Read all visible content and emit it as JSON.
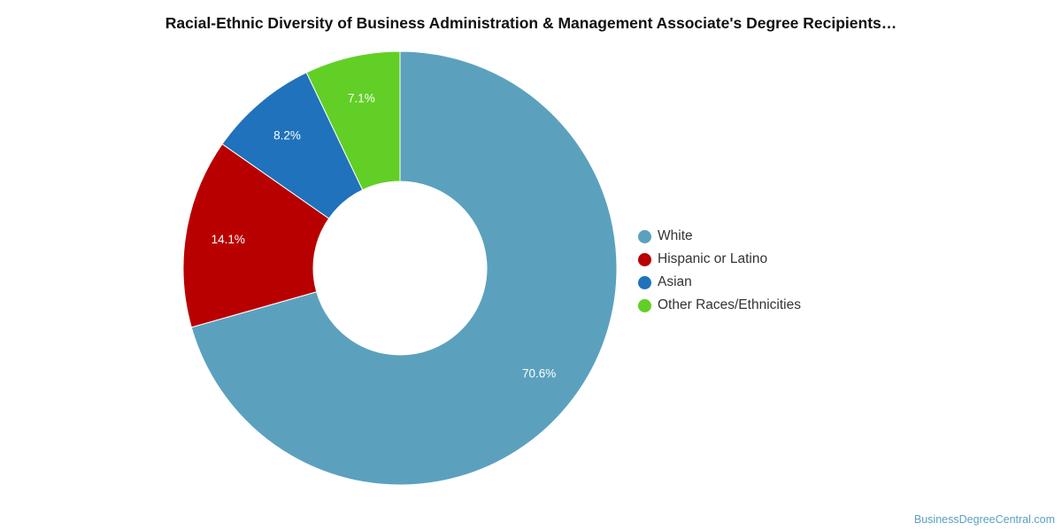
{
  "chart_data": {
    "type": "pie",
    "donut": true,
    "title": "Racial-Ethnic Diversity of Business Administration & Management Associate's Degree Recipients…",
    "slices": [
      {
        "label": "White",
        "value": 70.6,
        "value_label": "70.6%",
        "color": "#5ba1be"
      },
      {
        "label": "Hispanic or Latino",
        "value": 14.1,
        "value_label": "14.1%",
        "color": "#b80000"
      },
      {
        "label": "Asian",
        "value": 8.2,
        "value_label": "8.2%",
        "color": "#1f72bb"
      },
      {
        "label": "Other Races/Ethnicities",
        "value": 7.1,
        "value_label": "7.1%",
        "color": "#62cf26"
      }
    ],
    "legend_position": "right",
    "start_clockwise_from": "top"
  },
  "watermark": "BusinessDegreeCentral.com"
}
